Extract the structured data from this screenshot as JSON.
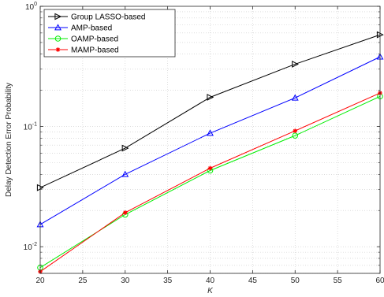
{
  "chart_data": {
    "type": "line",
    "xlabel": "K",
    "ylabel": "Delay Detection Error Probability",
    "x": [
      20,
      30,
      40,
      50,
      60
    ],
    "xlim": [
      20,
      60
    ],
    "ylim": [
      0.006,
      1
    ],
    "yscale": "log",
    "xticks": [
      "20",
      "25",
      "30",
      "35",
      "40",
      "45",
      "50",
      "55",
      "60"
    ],
    "yticks": [
      {
        "base": "10",
        "exp": "-2"
      },
      {
        "base": "10",
        "exp": "-1"
      },
      {
        "base": "10",
        "exp": "0"
      }
    ],
    "grid": true,
    "legend_position": "top-left",
    "series": [
      {
        "name": "Group LASSO-based",
        "color": "#000000",
        "marker": "triangle-right",
        "values": [
          0.031,
          0.066,
          0.175,
          0.33,
          0.58
        ]
      },
      {
        "name": "AMP-based",
        "color": "#0000ff",
        "marker": "triangle-up",
        "values": [
          0.0153,
          0.04,
          0.088,
          0.173,
          0.38
        ]
      },
      {
        "name": "OAMP-based",
        "color": "#00ee00",
        "marker": "circle",
        "values": [
          0.0067,
          0.0185,
          0.043,
          0.084,
          0.178
        ]
      },
      {
        "name": "MAMP-based",
        "color": "#ff0000",
        "marker": "asterisk",
        "values": [
          0.0062,
          0.0192,
          0.045,
          0.092,
          0.19
        ]
      }
    ]
  }
}
